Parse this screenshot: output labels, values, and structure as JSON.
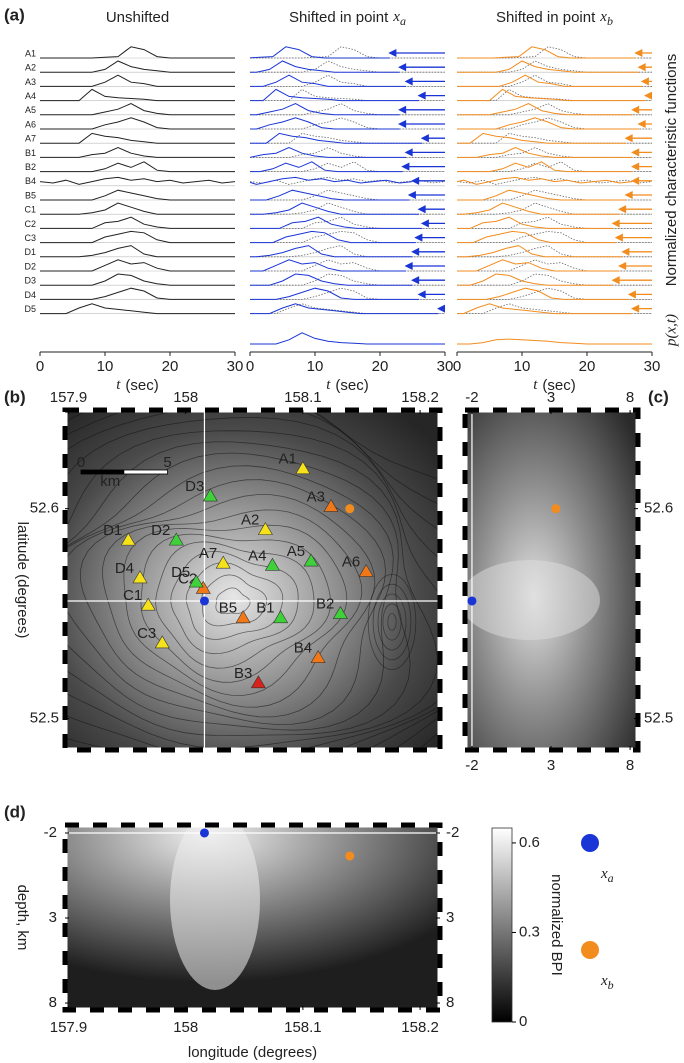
{
  "points": [
    {
      "symbol": "x",
      "subscript": "a",
      "color": "#1a35d6"
    },
    {
      "symbol": "x",
      "subscript": "b",
      "color": "#f28c1e"
    }
  ],
  "chart_data": [
    {
      "type": "waveforms",
      "label": "(a)",
      "titles": [
        "Unshifted",
        "Shifted in point",
        "Shifted in point"
      ],
      "x": [
        0,
        2,
        4,
        6,
        8,
        10,
        12,
        14,
        16,
        18,
        20,
        22,
        24,
        26,
        28,
        30
      ],
      "xlim": [
        0,
        30
      ],
      "xticks": [
        0,
        10,
        20,
        30
      ],
      "xlabel_var": "t",
      "xlabel_unit": "(sec)",
      "ylabel": "Normalized characteristic functions",
      "stack_label": "p(x,t)",
      "traces": [
        {
          "name": "A1",
          "values": [
            0,
            0,
            0,
            0,
            0,
            0.05,
            0.1,
            0.8,
            0.6,
            0.1,
            0,
            0,
            0,
            0,
            0,
            0
          ],
          "shifts": [
            8.5,
            2.5
          ]
        },
        {
          "name": "A2",
          "values": [
            0,
            0,
            0,
            0,
            0,
            0.2,
            0.8,
            0.4,
            0.2,
            0.1,
            0,
            0,
            0,
            0,
            0,
            0
          ],
          "shifts": [
            7,
            2
          ]
        },
        {
          "name": "A3",
          "values": [
            0,
            0,
            0,
            0,
            0,
            0.3,
            0.8,
            0.3,
            0.2,
            0,
            0,
            0,
            0,
            0,
            0,
            0
          ],
          "shifts": [
            6,
            1.5
          ]
        },
        {
          "name": "A4",
          "values": [
            0,
            0,
            0,
            0,
            0.8,
            0.3,
            0.2,
            0.15,
            0.1,
            0,
            0,
            0,
            0,
            0,
            0,
            0
          ],
          "shifts": [
            4,
            1
          ]
        },
        {
          "name": "A5",
          "values": [
            0,
            0,
            0,
            0,
            0,
            0.2,
            0.4,
            0.8,
            0.3,
            0.1,
            0,
            0,
            0,
            0,
            0,
            0
          ],
          "shifts": [
            7,
            3
          ]
        },
        {
          "name": "A6",
          "values": [
            0,
            0,
            0,
            0,
            0,
            0.3,
            0.5,
            0.8,
            0.5,
            0.1,
            0,
            0,
            0,
            0,
            0,
            0
          ],
          "shifts": [
            7,
            2
          ]
        },
        {
          "name": "A7",
          "values": [
            0,
            0,
            0,
            0,
            0.7,
            0.5,
            0.4,
            0.2,
            0.1,
            0,
            0,
            0,
            0,
            0,
            0,
            0
          ],
          "shifts": [
            3.5,
            4
          ]
        },
        {
          "name": "B1",
          "values": [
            0,
            0,
            0,
            0,
            0.2,
            0.3,
            0.7,
            0.3,
            0.1,
            0,
            0,
            0,
            0,
            0,
            0,
            0
          ],
          "shifts": [
            6,
            3
          ]
        },
        {
          "name": "B2",
          "values": [
            0,
            0,
            0,
            0,
            0,
            0.2,
            0.6,
            0.3,
            0.7,
            0.1,
            0,
            0,
            0,
            0,
            0,
            0
          ],
          "shifts": [
            6.5,
            3
          ]
        },
        {
          "name": "B4",
          "values": [
            0.3,
            0.2,
            0.4,
            0.1,
            0.3,
            0.5,
            0.6,
            0.4,
            0.5,
            0.3,
            0.4,
            0.2,
            0.3,
            0.4,
            0.2,
            0.3
          ],
          "shifts": [
            5,
            3
          ]
        },
        {
          "name": "B5",
          "values": [
            0,
            0,
            0,
            0,
            0,
            0.3,
            0.7,
            0.5,
            0.3,
            0.1,
            0,
            0,
            0,
            0,
            0,
            0
          ],
          "shifts": [
            5.5,
            4
          ]
        },
        {
          "name": "C1",
          "values": [
            0,
            0,
            0,
            0,
            0.1,
            0.3,
            0.8,
            0.5,
            0.2,
            0,
            0,
            0,
            0,
            0,
            0,
            0
          ],
          "shifts": [
            4,
            5
          ]
        },
        {
          "name": "C2",
          "values": [
            0,
            0,
            0,
            0,
            0,
            0.4,
            0.5,
            0.8,
            0.3,
            0.1,
            0,
            0,
            0,
            0,
            0,
            0
          ],
          "shifts": [
            3.5,
            6
          ]
        },
        {
          "name": "C3",
          "values": [
            0,
            0,
            0,
            0,
            0,
            0.4,
            0.6,
            0.8,
            0.7,
            0.2,
            0,
            0,
            0,
            0,
            0,
            0
          ],
          "shifts": [
            4.5,
            5.5
          ]
        },
        {
          "name": "D1",
          "values": [
            0,
            0,
            0,
            0,
            0.1,
            0.3,
            0.6,
            0.8,
            0.2,
            0,
            0,
            0,
            0,
            0,
            0,
            0
          ],
          "shifts": [
            5,
            4.5
          ]
        },
        {
          "name": "D2",
          "values": [
            0,
            0,
            0,
            0,
            0,
            0.4,
            0.8,
            0.5,
            0.6,
            0.2,
            0,
            0,
            0,
            0,
            0,
            0
          ],
          "shifts": [
            6,
            5
          ]
        },
        {
          "name": "D3",
          "values": [
            0,
            0,
            0,
            0,
            0,
            0.3,
            0.8,
            0.7,
            0.3,
            0.1,
            0,
            0,
            0,
            0,
            0,
            0
          ],
          "shifts": [
            5,
            6
          ]
        },
        {
          "name": "D4",
          "values": [
            0,
            0,
            0,
            0,
            0,
            0.2,
            0.5,
            0.8,
            0.6,
            0.1,
            0,
            0,
            0,
            0,
            0,
            0
          ],
          "shifts": [
            4,
            3.5
          ]
        },
        {
          "name": "D5",
          "values": [
            0,
            0,
            0,
            0.4,
            0.7,
            0.4,
            0.3,
            0.2,
            0.1,
            0,
            0,
            0,
            0,
            0,
            0,
            0
          ],
          "shifts": [
            1,
            3
          ]
        }
      ],
      "stack": [
        {
          "values": [
            0,
            0,
            0,
            0.3,
            0.8,
            0.4,
            0.2,
            0.1,
            0.05,
            0,
            0,
            0,
            0,
            0,
            0,
            0
          ]
        },
        {
          "values": [
            0,
            0,
            0.1,
            0.3,
            0.35,
            0.3,
            0.25,
            0.2,
            0.1,
            0.05,
            0,
            0,
            0,
            0,
            0,
            0
          ]
        }
      ]
    },
    {
      "type": "map",
      "label": "(b)",
      "xlim": [
        157.897,
        158.217
      ],
      "xticks": [
        157.9,
        158.0,
        158.1,
        158.2
      ],
      "ylim": [
        52.485,
        52.647
      ],
      "yticks": [
        52.5,
        52.6
      ],
      "ylabel": "latitude (degrees)",
      "scale": {
        "labels": [
          0,
          5
        ],
        "unit": "km"
      },
      "stations": [
        {
          "name": "A1",
          "x": 158.1,
          "y": 52.619,
          "color": "#f5e21a"
        },
        {
          "name": "A2",
          "x": 158.068,
          "y": 52.59,
          "color": "#f5e21a"
        },
        {
          "name": "A3",
          "x": 158.124,
          "y": 52.601,
          "color": "#f07818"
        },
        {
          "name": "A4",
          "x": 158.074,
          "y": 52.573,
          "color": "#3fd13a"
        },
        {
          "name": "A5",
          "x": 158.107,
          "y": 52.575,
          "color": "#3fd13a"
        },
        {
          "name": "A6",
          "x": 158.154,
          "y": 52.57,
          "color": "#f07818"
        },
        {
          "name": "A7",
          "x": 158.032,
          "y": 52.574,
          "color": "#f5e21a"
        },
        {
          "name": "B1",
          "x": 158.081,
          "y": 52.548,
          "color": "#3fd13a"
        },
        {
          "name": "B2",
          "x": 158.132,
          "y": 52.55,
          "color": "#3fd13a"
        },
        {
          "name": "B3",
          "x": 158.062,
          "y": 52.517,
          "color": "#d8221c"
        },
        {
          "name": "B4",
          "x": 158.113,
          "y": 52.529,
          "color": "#f07818"
        },
        {
          "name": "B5",
          "x": 158.049,
          "y": 52.548,
          "color": "#f07818"
        },
        {
          "name": "C1",
          "x": 157.968,
          "y": 52.554,
          "color": "#f5e21a"
        },
        {
          "name": "C2",
          "x": 158.015,
          "y": 52.562,
          "color": "#f07818"
        },
        {
          "name": "C3",
          "x": 157.98,
          "y": 52.536,
          "color": "#f5e21a"
        },
        {
          "name": "D1",
          "x": 157.951,
          "y": 52.585,
          "color": "#f5e21a"
        },
        {
          "name": "D2",
          "x": 157.992,
          "y": 52.585,
          "color": "#3fd13a"
        },
        {
          "name": "D3",
          "x": 158.021,
          "y": 52.606,
          "color": "#3fd13a"
        },
        {
          "name": "D4",
          "x": 157.961,
          "y": 52.567,
          "color": "#f5e21a"
        },
        {
          "name": "D5",
          "x": 158.009,
          "y": 52.565,
          "color": "#3fd13a"
        }
      ],
      "marks": [
        {
          "x": 158.016,
          "y": 52.556
        },
        {
          "x": 158.14,
          "y": 52.6
        }
      ]
    },
    {
      "type": "scatter",
      "label": "(c)",
      "xlim": [
        -2.44,
        8.5
      ],
      "xticks": [
        -2,
        3,
        8
      ],
      "ylim": [
        52.485,
        52.647
      ],
      "yticks": [
        52.5,
        52.6
      ],
      "marks": [
        {
          "x": -2,
          "y": 52.556
        },
        {
          "x": 3.3,
          "y": 52.6
        }
      ]
    },
    {
      "type": "scatter",
      "label": "(d)",
      "xlim": [
        157.897,
        158.217
      ],
      "xticks": [
        157.9,
        158.0,
        158.1,
        158.2
      ],
      "ylim": [
        -2.47,
        8.41
      ],
      "yticks": [
        -2,
        3,
        8
      ],
      "yreverse": true,
      "xlabel": "longitude (degrees)",
      "ylabel": "depth, km",
      "marks": [
        {
          "x": 158.016,
          "y": -2
        },
        {
          "x": 158.14,
          "y": -0.65
        }
      ],
      "colorbar": {
        "label": "normalized BPI",
        "lim": [
          0,
          0.65
        ],
        "ticks": [
          0,
          0.3,
          0.6
        ]
      }
    }
  ]
}
